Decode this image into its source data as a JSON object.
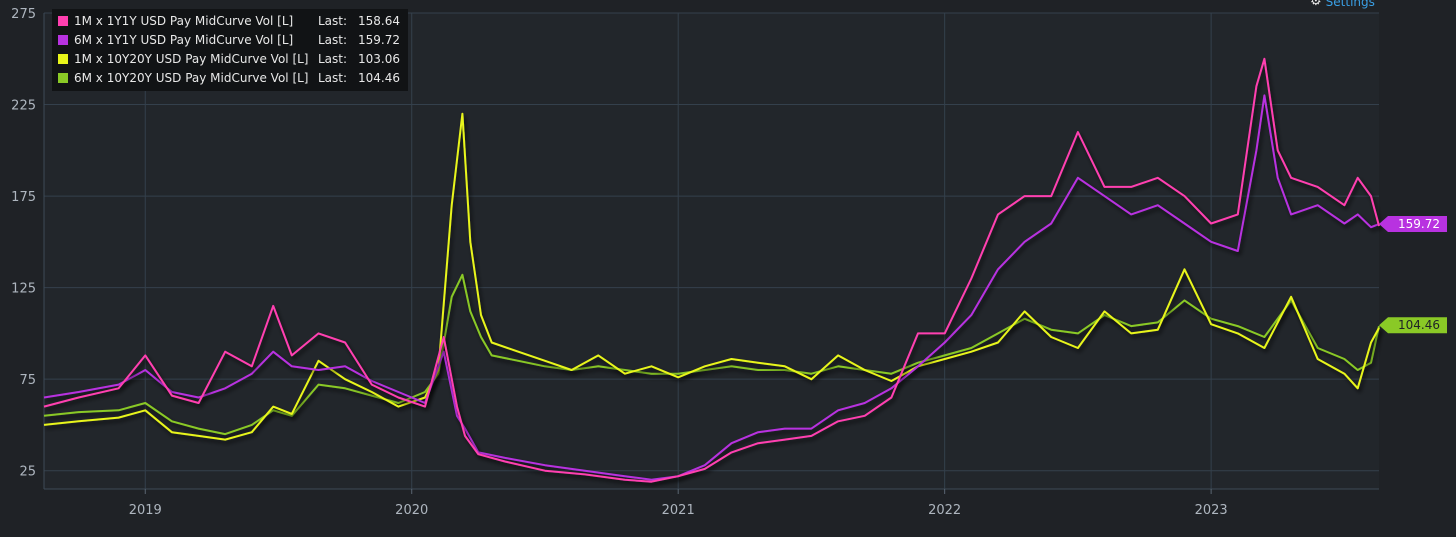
{
  "settings_label": "Settings",
  "legend": [
    {
      "name": "1M x 1Y1Y USD Pay MidCurve Vol [L]",
      "last_label": "Last:",
      "last_value": "158.64",
      "color": "#ff3fb0"
    },
    {
      "name": "6M x 1Y1Y USD Pay MidCurve Vol [L]",
      "last_label": "Last:",
      "last_value": "159.72",
      "color": "#b832e0"
    },
    {
      "name": "1M x 10Y20Y USD Pay MidCurve Vol [L]",
      "last_label": "Last:",
      "last_value": "103.06",
      "color": "#e8f51a"
    },
    {
      "name": "6M x 10Y20Y USD Pay MidCurve Vol [L]",
      "last_label": "Last:",
      "last_value": "104.46",
      "color": "#8ac926"
    }
  ],
  "chart_data": {
    "type": "line",
    "title": "",
    "xlabel": "",
    "ylabel": "",
    "xlim": [
      2018.62,
      2023.63
    ],
    "ylim": [
      15,
      275
    ],
    "yticks": [
      25,
      75,
      125,
      175,
      225,
      275
    ],
    "xticks": [
      {
        "value": 2019.0,
        "label": "2019"
      },
      {
        "value": 2020.0,
        "label": "2020"
      },
      {
        "value": 2021.0,
        "label": "2021"
      },
      {
        "value": 2022.0,
        "label": "2022"
      },
      {
        "value": 2023.0,
        "label": "2023"
      }
    ],
    "grid": true,
    "legend_position": "top-left",
    "last_value_tags": [
      {
        "series": "6M x 1Y1Y USD Pay MidCurve Vol [L]",
        "value": 159.72,
        "label": "159.72",
        "color": "#b832e0",
        "text_color": "#ffffff"
      },
      {
        "series": "6M x 10Y20Y USD Pay MidCurve Vol [L]",
        "value": 104.46,
        "label": "104.46",
        "color": "#8ac926",
        "text_color": "#1f2226"
      }
    ],
    "series": [
      {
        "name": "6M x 10Y20Y USD Pay MidCurve Vol [L]",
        "color": "#8ac926",
        "x": [
          2018.62,
          2018.75,
          2018.9,
          2019.0,
          2019.1,
          2019.2,
          2019.3,
          2019.4,
          2019.48,
          2019.55,
          2019.65,
          2019.75,
          2019.85,
          2019.95,
          2020.05,
          2020.1,
          2020.15,
          2020.19,
          2020.22,
          2020.26,
          2020.3,
          2020.4,
          2020.5,
          2020.6,
          2020.7,
          2020.8,
          2020.9,
          2021.0,
          2021.1,
          2021.2,
          2021.3,
          2021.4,
          2021.5,
          2021.6,
          2021.7,
          2021.8,
          2021.9,
          2022.0,
          2022.1,
          2022.2,
          2022.3,
          2022.4,
          2022.5,
          2022.6,
          2022.7,
          2022.8,
          2022.9,
          2023.0,
          2023.1,
          2023.2,
          2023.3,
          2023.4,
          2023.5,
          2023.55,
          2023.6,
          2023.63
        ],
        "y": [
          55,
          57,
          58,
          62,
          52,
          48,
          45,
          50,
          58,
          55,
          72,
          70,
          66,
          62,
          68,
          78,
          120,
          132,
          112,
          98,
          88,
          85,
          82,
          80,
          82,
          80,
          78,
          78,
          80,
          82,
          80,
          80,
          78,
          82,
          80,
          78,
          84,
          88,
          92,
          100,
          108,
          102,
          100,
          110,
          104,
          106,
          118,
          108,
          104,
          98,
          118,
          92,
          86,
          80,
          84,
          104
        ]
      },
      {
        "name": "1M x 10Y20Y USD Pay MidCurve Vol [L]",
        "color": "#e8f51a",
        "x": [
          2018.62,
          2018.75,
          2018.9,
          2019.0,
          2019.1,
          2019.2,
          2019.3,
          2019.4,
          2019.48,
          2019.55,
          2019.65,
          2019.75,
          2019.85,
          2019.95,
          2020.05,
          2020.1,
          2020.15,
          2020.19,
          2020.22,
          2020.26,
          2020.3,
          2020.4,
          2020.5,
          2020.6,
          2020.7,
          2020.8,
          2020.9,
          2021.0,
          2021.1,
          2021.2,
          2021.3,
          2021.4,
          2021.5,
          2021.6,
          2021.7,
          2021.8,
          2021.9,
          2022.0,
          2022.1,
          2022.2,
          2022.3,
          2022.4,
          2022.5,
          2022.6,
          2022.7,
          2022.8,
          2022.9,
          2023.0,
          2023.1,
          2023.2,
          2023.3,
          2023.4,
          2023.5,
          2023.55,
          2023.6,
          2023.63
        ],
        "y": [
          50,
          52,
          54,
          58,
          46,
          44,
          42,
          46,
          60,
          56,
          85,
          75,
          68,
          60,
          65,
          80,
          170,
          220,
          150,
          110,
          95,
          90,
          85,
          80,
          88,
          78,
          82,
          76,
          82,
          86,
          84,
          82,
          75,
          88,
          80,
          74,
          82,
          86,
          90,
          95,
          112,
          98,
          92,
          112,
          100,
          102,
          135,
          105,
          100,
          92,
          120,
          86,
          78,
          70,
          95,
          103
        ]
      },
      {
        "name": "6M x 1Y1Y USD Pay MidCurve Vol [L]",
        "color": "#b832e0",
        "x": [
          2018.62,
          2018.75,
          2018.9,
          2019.0,
          2019.1,
          2019.2,
          2019.3,
          2019.4,
          2019.48,
          2019.55,
          2019.65,
          2019.75,
          2019.85,
          2019.95,
          2020.05,
          2020.12,
          2020.17,
          2020.2,
          2020.25,
          2020.35,
          2020.5,
          2020.65,
          2020.8,
          2020.9,
          2021.0,
          2021.1,
          2021.2,
          2021.3,
          2021.4,
          2021.5,
          2021.6,
          2021.7,
          2021.8,
          2021.9,
          2022.0,
          2022.1,
          2022.2,
          2022.3,
          2022.4,
          2022.5,
          2022.6,
          2022.7,
          2022.8,
          2022.9,
          2023.0,
          2023.1,
          2023.17,
          2023.2,
          2023.25,
          2023.3,
          2023.4,
          2023.5,
          2023.55,
          2023.6,
          2023.63
        ],
        "y": [
          65,
          68,
          72,
          80,
          68,
          65,
          70,
          78,
          90,
          82,
          80,
          82,
          74,
          68,
          62,
          90,
          55,
          48,
          35,
          32,
          28,
          25,
          22,
          20,
          22,
          28,
          40,
          46,
          48,
          48,
          58,
          62,
          70,
          82,
          95,
          110,
          135,
          150,
          160,
          185,
          175,
          165,
          170,
          160,
          150,
          145,
          200,
          230,
          185,
          165,
          170,
          160,
          165,
          158,
          159.72
        ]
      },
      {
        "name": "1M x 1Y1Y USD Pay MidCurve Vol [L]",
        "color": "#ff3fb0",
        "x": [
          2018.62,
          2018.75,
          2018.9,
          2019.0,
          2019.1,
          2019.2,
          2019.3,
          2019.4,
          2019.48,
          2019.55,
          2019.65,
          2019.75,
          2019.85,
          2019.95,
          2020.05,
          2020.12,
          2020.17,
          2020.2,
          2020.25,
          2020.35,
          2020.5,
          2020.65,
          2020.8,
          2020.9,
          2021.0,
          2021.1,
          2021.2,
          2021.3,
          2021.4,
          2021.5,
          2021.6,
          2021.7,
          2021.8,
          2021.9,
          2022.0,
          2022.1,
          2022.2,
          2022.3,
          2022.4,
          2022.5,
          2022.6,
          2022.7,
          2022.8,
          2022.9,
          2023.0,
          2023.1,
          2023.17,
          2023.2,
          2023.25,
          2023.3,
          2023.4,
          2023.5,
          2023.55,
          2023.6,
          2023.63
        ],
        "y": [
          60,
          65,
          70,
          88,
          66,
          62,
          90,
          82,
          115,
          88,
          100,
          95,
          72,
          65,
          60,
          98,
          60,
          44,
          34,
          30,
          25,
          23,
          20,
          19,
          22,
          26,
          35,
          40,
          42,
          44,
          52,
          55,
          65,
          100,
          100,
          130,
          165,
          175,
          175,
          210,
          180,
          180,
          185,
          175,
          160,
          165,
          235,
          250,
          200,
          185,
          180,
          170,
          185,
          175,
          158.64
        ]
      }
    ]
  }
}
